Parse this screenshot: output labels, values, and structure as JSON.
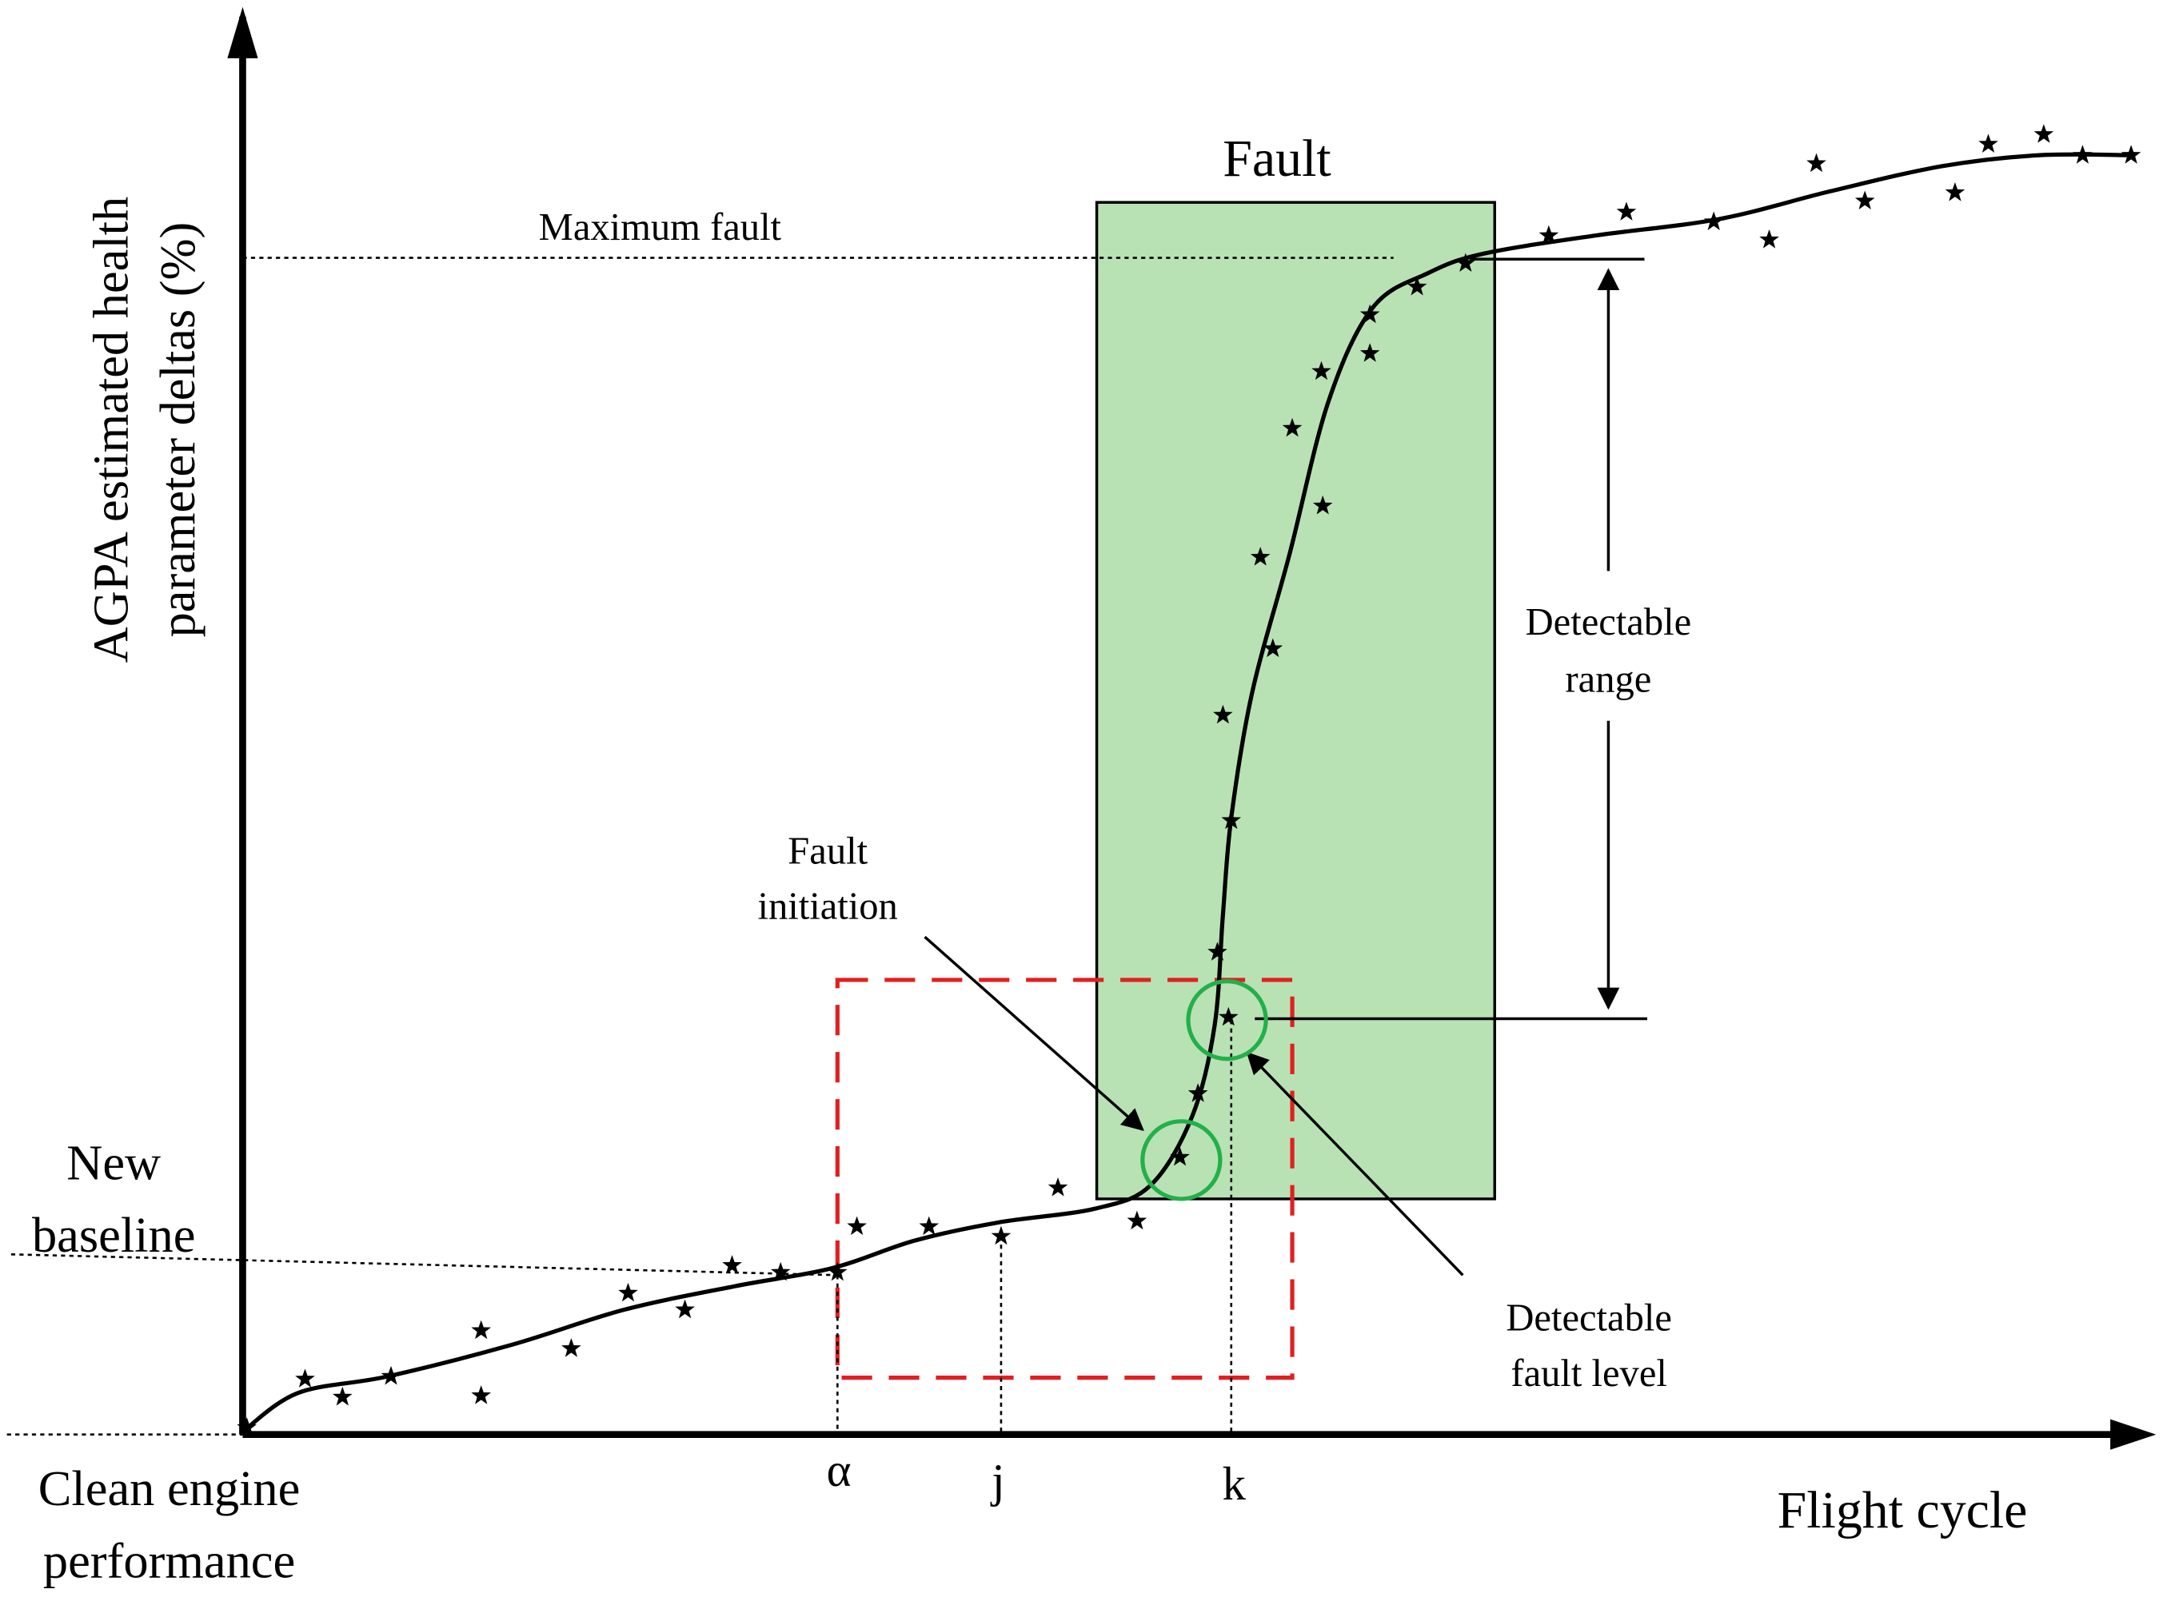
{
  "y_axis_label": [
    "AGPA estimated health",
    "parameter deltas (%)"
  ],
  "x_axis_label": "Flight cycle",
  "fault_box_label": "Fault",
  "maximum_fault": "Maximum fault",
  "detectable_range": [
    "Detectable",
    "range"
  ],
  "fault_initiation": [
    "Fault",
    "initiation"
  ],
  "detectable_fault_level": [
    "Detectable",
    "fault level"
  ],
  "new_baseline": [
    "New",
    "baseline"
  ],
  "clean_engine": [
    "Clean engine",
    "performance"
  ],
  "x_markers": [
    "α",
    "j",
    "k"
  ]
}
